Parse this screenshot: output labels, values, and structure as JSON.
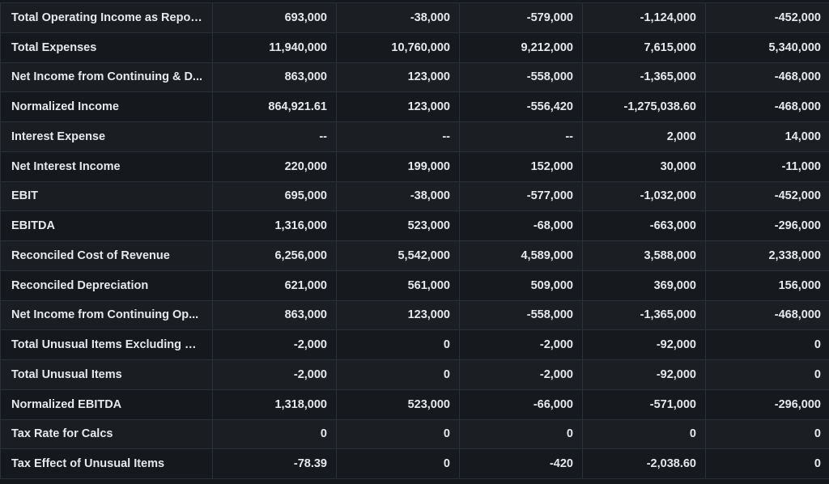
{
  "table": {
    "rows": [
      {
        "label": "Total Operating Income as Repor...",
        "values": [
          "693,000",
          "-38,000",
          "-579,000",
          "-1,124,000",
          "-452,000"
        ]
      },
      {
        "label": "Total Expenses",
        "values": [
          "11,940,000",
          "10,760,000",
          "9,212,000",
          "7,615,000",
          "5,340,000"
        ]
      },
      {
        "label": "Net Income from Continuing & D...",
        "values": [
          "863,000",
          "123,000",
          "-558,000",
          "-1,365,000",
          "-468,000"
        ]
      },
      {
        "label": "Normalized Income",
        "values": [
          "864,921.61",
          "123,000",
          "-556,420",
          "-1,275,038.60",
          "-468,000"
        ]
      },
      {
        "label": "Interest Expense",
        "values": [
          "--",
          "--",
          "--",
          "2,000",
          "14,000"
        ]
      },
      {
        "label": "Net Interest Income",
        "values": [
          "220,000",
          "199,000",
          "152,000",
          "30,000",
          "-11,000"
        ]
      },
      {
        "label": "EBIT",
        "values": [
          "695,000",
          "-38,000",
          "-577,000",
          "-1,032,000",
          "-452,000"
        ]
      },
      {
        "label": "EBITDA",
        "values": [
          "1,316,000",
          "523,000",
          "-68,000",
          "-663,000",
          "-296,000"
        ]
      },
      {
        "label": "Reconciled Cost of Revenue",
        "values": [
          "6,256,000",
          "5,542,000",
          "4,589,000",
          "3,588,000",
          "2,338,000"
        ]
      },
      {
        "label": "Reconciled Depreciation",
        "values": [
          "621,000",
          "561,000",
          "509,000",
          "369,000",
          "156,000"
        ]
      },
      {
        "label": "Net Income from Continuing Op...",
        "values": [
          "863,000",
          "123,000",
          "-558,000",
          "-1,365,000",
          "-468,000"
        ]
      },
      {
        "label": "Total Unusual Items Excluding G...",
        "values": [
          "-2,000",
          "0",
          "-2,000",
          "-92,000",
          "0"
        ]
      },
      {
        "label": "Total Unusual Items",
        "values": [
          "-2,000",
          "0",
          "-2,000",
          "-92,000",
          "0"
        ]
      },
      {
        "label": "Normalized EBITDA",
        "values": [
          "1,318,000",
          "523,000",
          "-66,000",
          "-571,000",
          "-296,000"
        ]
      },
      {
        "label": "Tax Rate for Calcs",
        "values": [
          "0",
          "0",
          "0",
          "0",
          "0"
        ]
      },
      {
        "label": "Tax Effect of Unusual Items",
        "values": [
          "-78.39",
          "0",
          "-420",
          "-2,038.60",
          "0"
        ]
      }
    ]
  }
}
